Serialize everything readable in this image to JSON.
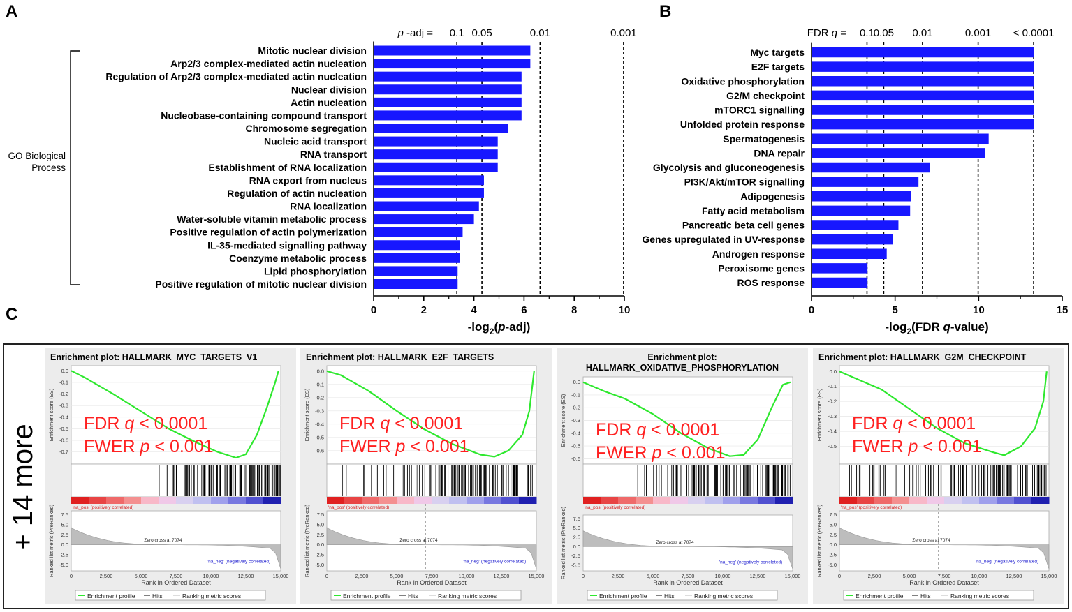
{
  "panel_labels": {
    "a": "A",
    "b": "B",
    "c": "C"
  },
  "colors": {
    "bar": "#1717ff",
    "curve": "#2ee82e",
    "annotation": "#ff2020",
    "pos_label": "#d62020",
    "neg_label": "#2020d0"
  },
  "go_bracket": {
    "line1": "GO Biological",
    "line2": "Process"
  },
  "more_label": "+ 14 more",
  "chart_data": [
    {
      "type": "bar",
      "orientation": "horizontal",
      "panel": "A",
      "categories": [
        "Mitotic nuclear division",
        "Arp2/3 complex-mediated actin nucleation",
        "Regulation of Arp2/3 complex-mediated actin nucleation",
        "Nuclear division",
        "Actin nucleation",
        "Nucleobase-containing compound transport",
        "Chromosome segregation",
        "Nucleic acid transport",
        "RNA transport",
        "Establishment of RNA localization",
        "RNA export from nucleus",
        "Regulation of actin nucleation",
        "RNA localization",
        "Water-soluble vitamin metabolic process",
        "Positive regulation of actin polymerization",
        "IL-35-mediated signalling pathway",
        "Coenzyme metabolic process",
        "Lipid phosphorylation",
        "Positive regulation of mitotic nuclear division"
      ],
      "values": [
        6.25,
        6.25,
        5.9,
        5.9,
        5.9,
        5.9,
        5.35,
        4.95,
        4.95,
        4.95,
        4.4,
        4.4,
        4.2,
        4.0,
        3.55,
        3.45,
        3.45,
        3.35,
        3.35
      ],
      "xlim": [
        0,
        10
      ],
      "xticks": [
        "0",
        "2",
        "4",
        "6",
        "8",
        "10"
      ],
      "xlabel_pre": "-log",
      "xlabel_sub": "2",
      "xlabel_open": "(",
      "xlabel_ital": "p",
      "xlabel_post": "-adj)",
      "threshold_header_ital": "p",
      "threshold_header_rest": "-adj =",
      "thresholds": [
        {
          "label": "0.1",
          "value": 3.32
        },
        {
          "label": "0.05",
          "value": 4.32
        },
        {
          "label": "0.01",
          "value": 6.64
        },
        {
          "label": "0.001",
          "value": 9.97
        }
      ]
    },
    {
      "type": "bar",
      "orientation": "horizontal",
      "panel": "B",
      "categories": [
        "Myc targets",
        "E2F targets",
        "Oxidative phosphorylation",
        "G2/M checkpoint",
        "mTORC1 signalling",
        "Unfolded protein response",
        "Spermatogenesis",
        "DNA repair",
        "Glycolysis and gluconeogenesis",
        "PI3K/Akt/mTOR signalling",
        "Adipogenesis",
        "Fatty acid metabolism",
        "Pancreatic beta cell genes",
        "Genes upregulated in UV-response",
        "Androgen response",
        "Peroxisome genes",
        "ROS response"
      ],
      "values": [
        13.3,
        13.3,
        13.3,
        13.3,
        13.3,
        13.3,
        10.6,
        10.4,
        7.1,
        6.4,
        5.95,
        5.9,
        5.2,
        4.85,
        4.5,
        3.35,
        3.35
      ],
      "xlim": [
        0,
        15
      ],
      "xticks": [
        "0",
        "5",
        "10",
        "15"
      ],
      "xlabel_pre": "-log",
      "xlabel_sub": "2",
      "xlabel_open": "(FDR ",
      "xlabel_ital": "q",
      "xlabel_post": "-value)",
      "threshold_header_ital": "q",
      "threshold_header_rest": "=",
      "threshold_header_pre": "FDR",
      "thresholds": [
        {
          "label": "0.1",
          "value": 3.32
        },
        {
          "label": "0.05",
          "value": 4.32
        },
        {
          "label": "0.01",
          "value": 6.64
        },
        {
          "label": "0.001",
          "value": 9.97
        },
        {
          "label": "< 0.0001",
          "value": 13.29
        }
      ]
    },
    {
      "type": "line",
      "panel": "C",
      "plots": [
        {
          "title_lines": [
            "Enrichment plot: HALLMARK_MYC_TARGETS_V1"
          ],
          "es_ticks": [
            "0.0",
            "-0.1",
            "-0.2",
            "-0.3",
            "-0.4",
            "-0.5",
            "-0.6",
            "-0.7"
          ],
          "es_min": -0.78,
          "es_profile": [
            [
              0,
              0
            ],
            [
              1000,
              -0.06
            ],
            [
              3000,
              -0.2
            ],
            [
              5000,
              -0.35
            ],
            [
              7000,
              -0.5
            ],
            [
              9000,
              -0.62
            ],
            [
              10500,
              -0.7
            ],
            [
              11800,
              -0.75
            ],
            [
              12500,
              -0.72
            ],
            [
              13300,
              -0.55
            ],
            [
              14000,
              -0.32
            ],
            [
              14600,
              -0.1
            ],
            [
              14840,
              0
            ]
          ],
          "fdr_ital": "q",
          "fdr_pre": "FDR ",
          "fdr_val": "< 0.0001",
          "fwer_ital": "p",
          "fwer_pre": "FWER ",
          "fwer_val": "< 0.001"
        },
        {
          "title_lines": [
            "Enrichment plot: HALLMARK_E2F_TARGETS"
          ],
          "es_ticks": [
            "0.0",
            "-0.1",
            "-0.2",
            "-0.3",
            "-0.4",
            "-0.5",
            "-0.6"
          ],
          "es_min": -0.68,
          "es_profile": [
            [
              0,
              0
            ],
            [
              1000,
              -0.03
            ],
            [
              3000,
              -0.15
            ],
            [
              5000,
              -0.3
            ],
            [
              7000,
              -0.44
            ],
            [
              9000,
              -0.55
            ],
            [
              11000,
              -0.63
            ],
            [
              12000,
              -0.645
            ],
            [
              13000,
              -0.6
            ],
            [
              14000,
              -0.48
            ],
            [
              14500,
              -0.3
            ],
            [
              14840,
              0
            ]
          ],
          "fdr_ital": "q",
          "fdr_pre": "FDR ",
          "fdr_val": "< 0.0001",
          "fwer_ital": "p",
          "fwer_pre": "FWER ",
          "fwer_val": "< 0.001"
        },
        {
          "title_lines": [
            "Enrichment plot:",
            "HALLMARK_OXIDATIVE_PHOSPHORYLATION"
          ],
          "es_ticks": [
            "0.0",
            "-0.1",
            "-0.2",
            "-0.3",
            "-0.4",
            "-0.5",
            "-0.6"
          ],
          "es_min": -0.62,
          "es_profile": [
            [
              0,
              0
            ],
            [
              1500,
              -0.07
            ],
            [
              3000,
              -0.13
            ],
            [
              5000,
              -0.25
            ],
            [
              7000,
              -0.4
            ],
            [
              9000,
              -0.52
            ],
            [
              10500,
              -0.58
            ],
            [
              11500,
              -0.57
            ],
            [
              12500,
              -0.45
            ],
            [
              13500,
              -0.2
            ],
            [
              14300,
              -0.02
            ],
            [
              14840,
              0
            ]
          ],
          "fdr_ital": "q",
          "fdr_pre": "FDR ",
          "fdr_val": "< 0.0001",
          "fwer_ital": "p",
          "fwer_pre": "FWER ",
          "fwer_val": "< 0.001"
        },
        {
          "title_lines": [
            "Enrichment plot: HALLMARK_G2M_CHECKPOINT"
          ],
          "es_ticks": [
            "0.0",
            "-0.1",
            "-0.2",
            "-0.3",
            "-0.4",
            "-0.5"
          ],
          "es_min": -0.6,
          "es_profile": [
            [
              0,
              0
            ],
            [
              1000,
              -0.04
            ],
            [
              3000,
              -0.12
            ],
            [
              5000,
              -0.25
            ],
            [
              7000,
              -0.38
            ],
            [
              9000,
              -0.48
            ],
            [
              11000,
              -0.54
            ],
            [
              11800,
              -0.56
            ],
            [
              13000,
              -0.5
            ],
            [
              14000,
              -0.38
            ],
            [
              14600,
              -0.2
            ],
            [
              14840,
              0
            ]
          ],
          "fdr_ital": "q",
          "fdr_pre": "FDR ",
          "fdr_val": "< 0.0001",
          "fwer_ital": "p",
          "fwer_pre": "FWER ",
          "fwer_val": "< 0.001"
        }
      ],
      "common": {
        "es_ylabel": "Enrichment score (ES)",
        "rank_ylabel": "Ranked list metric (PreRanked)",
        "rank_ticks": [
          "7.5",
          "5.0",
          "2.5",
          "0.0",
          "-2.5",
          "-5.0"
        ],
        "xticks": [
          "0",
          "2,500",
          "5,000",
          "7,500",
          "10,000",
          "12,500",
          "15,000"
        ],
        "xmax": 15000,
        "xlabel": "Rank in Ordered Dataset",
        "zero_cross": "Zero cross at 7074",
        "zero_cross_value": 7074,
        "pos_label": "'na_pos' (positively correlated)",
        "neg_label": "'na_neg' (negatively correlated)",
        "legend": [
          "Enrichment profile",
          "Hits",
          "Ranking metric scores"
        ]
      }
    }
  ]
}
